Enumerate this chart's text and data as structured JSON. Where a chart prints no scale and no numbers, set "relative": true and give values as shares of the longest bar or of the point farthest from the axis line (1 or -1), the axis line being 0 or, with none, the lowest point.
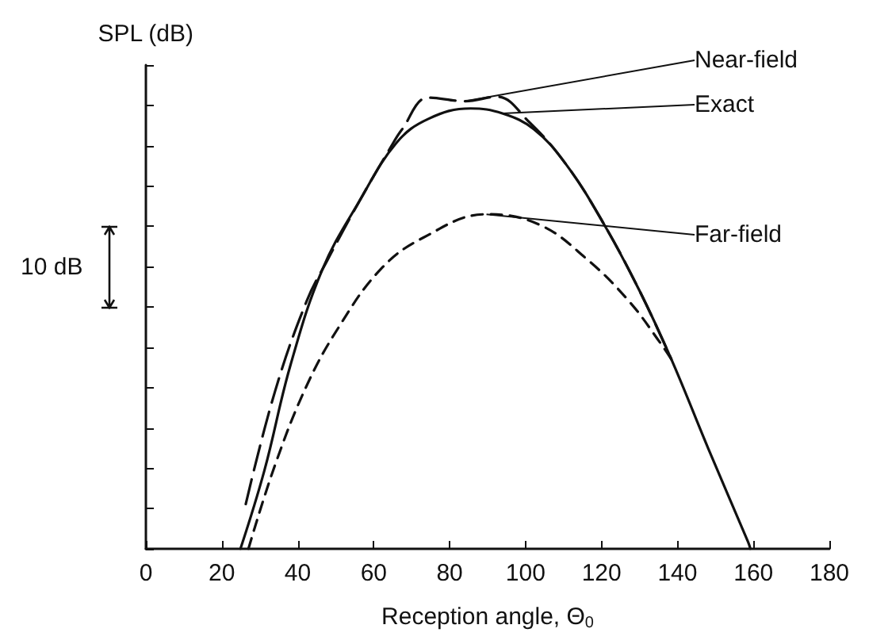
{
  "chart_data": {
    "type": "line",
    "relative": true,
    "ylabel": "SPL (dB)",
    "xlabel": "Reception angle, Θ$_{0}$",
    "xlim": [
      0,
      180
    ],
    "xticks": [
      0,
      20,
      40,
      60,
      80,
      100,
      120,
      140,
      160,
      180
    ],
    "grid": false,
    "legend": false,
    "marker": "none",
    "annotations": [
      "10 dB"
    ],
    "series": [
      {
        "name": "Near-field",
        "color": "#111111",
        "line_style": "long-dashed",
        "x": [
          26.3,
          34,
          42.3,
          47.9,
          56.3,
          64.6,
          67.4,
          74.4,
          84.1,
          92.4,
          100.8,
          110.6,
          120.3,
          130,
          138.4
        ],
        "values": [
          0.099,
          0.348,
          0.547,
          0.64,
          0.77,
          0.89,
          0.927,
          0.998,
          0.99,
          1.0,
          0.945,
          0.851,
          0.723,
          0.571,
          0.419
        ]
      },
      {
        "name": "Exact",
        "color": "#111111",
        "line_style": "solid",
        "x": [
          24.9,
          31.2,
          38.1,
          46.5,
          56.3,
          66,
          74.4,
          85.5,
          93.9,
          102.2,
          110.6,
          120.3,
          130,
          138.4,
          148.2,
          158.6,
          159.2
        ],
        "values": [
          0,
          0.173,
          0.407,
          0.618,
          0.77,
          0.898,
          0.951,
          0.974,
          0.963,
          0.928,
          0.851,
          0.723,
          0.571,
          0.419,
          0.22,
          0.015,
          0
        ]
      },
      {
        "name": "Far-field",
        "color": "#111111",
        "line_style": "dashed",
        "x": [
          27,
          34,
          42.3,
          50.7,
          61.8,
          73,
          89.7,
          103.6,
          116.1,
          127.3,
          135.6,
          138.4
        ],
        "values": [
          0,
          0.185,
          0.36,
          0.489,
          0.618,
          0.688,
          0.74,
          0.717,
          0.641,
          0.547,
          0.454,
          0.419
        ]
      }
    ]
  }
}
